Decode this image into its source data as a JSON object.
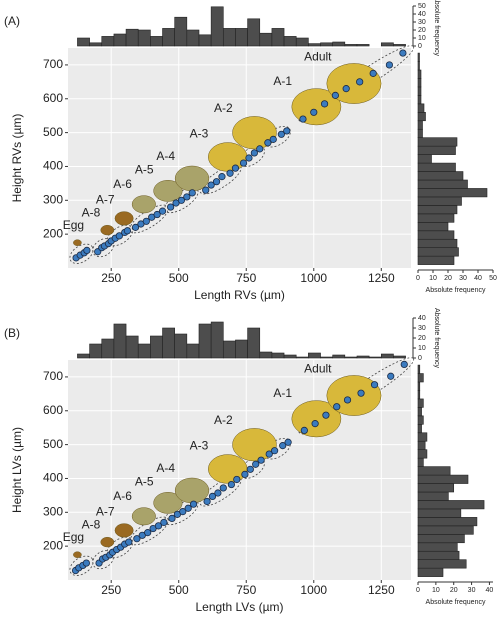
{
  "chart_data": [
    {
      "type": "scatter",
      "title": "(A)",
      "xlabel": "Length RVs (µm)",
      "ylabel": "Height RVs (µm)",
      "annotations": [
        "Egg",
        "A-8",
        "A-7",
        "A-6",
        "A-5",
        "A-4",
        "A-3",
        "A-2",
        "A-1",
        "Adult"
      ],
      "x": [
        120,
        135,
        150,
        160,
        200,
        215,
        225,
        240,
        250,
        265,
        280,
        300,
        310,
        340,
        360,
        380,
        400,
        420,
        440,
        470,
        490,
        510,
        530,
        550,
        600,
        620,
        640,
        660,
        690,
        710,
        740,
        760,
        780,
        800,
        830,
        850,
        880,
        900,
        960,
        1000,
        1040,
        1080,
        1120,
        1170,
        1220,
        1280,
        1330
      ],
      "values": [
        130,
        138,
        145,
        152,
        148,
        160,
        165,
        172,
        180,
        188,
        195,
        205,
        210,
        220,
        230,
        238,
        250,
        258,
        268,
        280,
        292,
        300,
        310,
        322,
        330,
        345,
        355,
        370,
        380,
        395,
        410,
        425,
        440,
        452,
        470,
        480,
        495,
        505,
        540,
        560,
        585,
        610,
        630,
        650,
        675,
        700,
        735
      ],
      "color": "#3b7bbf",
      "xlim": [
        90,
        1360
      ],
      "ylim": [
        100,
        750
      ],
      "xticks": [
        250,
        500,
        750,
        1000,
        1250
      ],
      "yticks": [
        200,
        300,
        400,
        500,
        600,
        700
      ],
      "grid": true
    },
    {
      "type": "histogram",
      "orientation": "vertical",
      "ylabel": "Absolute frequency",
      "color": "#4d4d4d",
      "bins": [
        125,
        170,
        215,
        260,
        305,
        350,
        395,
        440,
        485,
        530,
        575,
        620,
        665,
        710,
        755,
        800,
        845,
        890,
        935,
        980,
        1025,
        1070,
        1115,
        1160,
        1205,
        1250,
        1295,
        1340
      ],
      "values": [
        10,
        4,
        12,
        15,
        21,
        20,
        12,
        22,
        36,
        20,
        14,
        49,
        22,
        22,
        34,
        16,
        22,
        12,
        10,
        3,
        4,
        5,
        2,
        2,
        0,
        4,
        2
      ],
      "xlim": [
        90,
        1360
      ],
      "ylim": [
        0,
        50
      ],
      "yticks": [
        0,
        10,
        20,
        30,
        40,
        50
      ]
    },
    {
      "type": "histogram",
      "orientation": "horizontal",
      "xlabel": "Absolute frequency",
      "color": "#4d4d4d",
      "bins": [
        110,
        135,
        160,
        185,
        210,
        235,
        260,
        285,
        310,
        335,
        360,
        385,
        410,
        435,
        460,
        485,
        510,
        535,
        560,
        585,
        610,
        635,
        660,
        685,
        710,
        735
      ],
      "values": [
        24,
        27,
        26,
        24,
        20,
        24,
        26,
        29,
        46,
        33,
        30,
        25,
        9,
        25,
        26,
        3,
        3,
        5,
        4,
        2,
        2,
        2,
        2,
        1,
        1
      ],
      "ylim": [
        100,
        750
      ],
      "xlim": [
        0,
        50
      ],
      "xticks": [
        0,
        10,
        20,
        30,
        40,
        50
      ]
    },
    {
      "type": "scatter",
      "title": "(B)",
      "xlabel": "Length LVs (µm)",
      "ylabel": "Height LVs (µm)",
      "annotations": [
        "Egg",
        "A-8",
        "A-7",
        "A-6",
        "A-5",
        "A-4",
        "A-3",
        "A-2",
        "A-1",
        "Adult"
      ],
      "x": [
        118,
        130,
        145,
        158,
        205,
        218,
        230,
        245,
        255,
        270,
        285,
        300,
        315,
        345,
        365,
        385,
        405,
        425,
        445,
        475,
        495,
        515,
        535,
        555,
        605,
        625,
        645,
        665,
        695,
        715,
        745,
        765,
        785,
        805,
        835,
        855,
        885,
        905,
        965,
        1005,
        1045,
        1085,
        1125,
        1175,
        1225,
        1285,
        1335
      ],
      "values": [
        128,
        136,
        143,
        150,
        150,
        162,
        167,
        174,
        182,
        190,
        197,
        206,
        212,
        222,
        232,
        240,
        252,
        260,
        270,
        282,
        294,
        302,
        312,
        324,
        332,
        347,
        357,
        372,
        382,
        397,
        412,
        427,
        442,
        454,
        472,
        482,
        497,
        507,
        542,
        562,
        587,
        612,
        632,
        652,
        677,
        702,
        737
      ],
      "color": "#3b7bbf",
      "xlim": [
        90,
        1360
      ],
      "ylim": [
        100,
        750
      ],
      "xticks": [
        250,
        500,
        750,
        1000,
        1250
      ],
      "yticks": [
        200,
        300,
        400,
        500,
        600,
        700
      ],
      "grid": true
    },
    {
      "type": "histogram",
      "orientation": "vertical",
      "ylabel": "Absolute frequency",
      "color": "#4d4d4d",
      "bins": [
        125,
        170,
        215,
        260,
        305,
        350,
        395,
        440,
        485,
        530,
        575,
        620,
        665,
        710,
        755,
        800,
        845,
        890,
        935,
        980,
        1025,
        1070,
        1115,
        1160,
        1205,
        1250,
        1295,
        1340
      ],
      "values": [
        4,
        14,
        19,
        34,
        22,
        14,
        22,
        30,
        24,
        14,
        34,
        36,
        17,
        18,
        30,
        6,
        5,
        3,
        1,
        5,
        1,
        3,
        1,
        2,
        1,
        4,
        2
      ],
      "xlim": [
        90,
        1360
      ],
      "ylim": [
        0,
        40
      ],
      "yticks": [
        0,
        10,
        20,
        30,
        40
      ]
    },
    {
      "type": "histogram",
      "orientation": "horizontal",
      "xlabel": "Absolute frequency",
      "color": "#4d4d4d",
      "bins": [
        110,
        135,
        160,
        185,
        210,
        235,
        260,
        285,
        310,
        335,
        360,
        385,
        410,
        435,
        460,
        485,
        510,
        535,
        560,
        585,
        610,
        635,
        660,
        685,
        710,
        735
      ],
      "values": [
        14,
        27,
        23,
        22,
        26,
        31,
        33,
        24,
        37,
        17,
        20,
        28,
        18,
        3,
        5,
        4,
        5,
        2,
        3,
        2,
        3,
        1,
        1,
        3,
        1
      ],
      "ylim": [
        100,
        750
      ],
      "xlim": [
        0,
        42
      ],
      "xticks": [
        0,
        10,
        20,
        30,
        40
      ]
    }
  ]
}
